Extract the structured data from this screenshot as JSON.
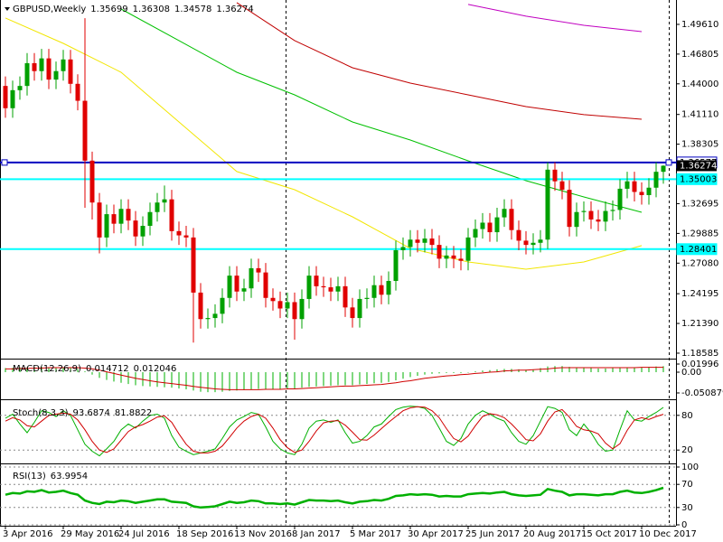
{
  "chart_data": [
    {
      "type": "candlestick",
      "title": "GBPUSD,Weekly",
      "categories": [
        "3 Apr 2016",
        null,
        null,
        null,
        null,
        null,
        null,
        null,
        "29 May 2016",
        null,
        null,
        null,
        null,
        null,
        null,
        null,
        "24 Jul 2016",
        null,
        null,
        null,
        null,
        null,
        null,
        null,
        "18 Sep 2016",
        null,
        null,
        null,
        null,
        null,
        null,
        null,
        "13 Nov 2016",
        null,
        null,
        null,
        null,
        null,
        null,
        null,
        "8 Jan 2017",
        null,
        null,
        null,
        null,
        null,
        null,
        null,
        "5 Mar 2017",
        null,
        null,
        null,
        null,
        null,
        null,
        null,
        "30 Apr 2017",
        null,
        null,
        null,
        null,
        null,
        null,
        null,
        "25 Jun 2017",
        null,
        null,
        null,
        null,
        null,
        null,
        null,
        "20 Aug 2017",
        null,
        null,
        null,
        null,
        null,
        null,
        null,
        "15 Oct 2017",
        null,
        null,
        null,
        null,
        null,
        null,
        null,
        "10 Dec 2017",
        null,
        null,
        null
      ],
      "open": [
        1.438,
        1.417,
        1.434,
        1.438,
        1.4595,
        1.452,
        1.464,
        1.444,
        1.452,
        1.463,
        1.44,
        1.424,
        1.3675,
        1.328,
        1.295,
        1.317,
        1.308,
        1.322,
        1.311,
        1.296,
        1.306,
        1.319,
        1.328,
        1.331,
        1.301,
        1.297,
        1.295,
        1.243,
        1.218,
        1.219,
        1.223,
        1.238,
        1.259,
        1.244,
        1.247,
        1.266,
        1.262,
        1.238,
        1.235,
        1.228,
        1.234,
        1.218,
        1.237,
        1.259,
        1.249,
        1.248,
        1.244,
        1.249,
        1.229,
        1.219,
        1.237,
        1.238,
        1.25,
        1.241,
        1.254,
        1.283,
        1.286,
        1.293,
        1.29,
        1.294,
        1.288,
        1.275,
        1.278,
        1.275,
        1.273,
        1.295,
        1.303,
        1.309,
        1.3,
        1.314,
        1.322,
        1.302,
        1.292,
        1.288,
        1.29,
        1.293,
        1.359,
        1.348,
        1.34,
        1.305,
        1.319,
        1.32,
        1.312,
        1.31,
        1.32,
        1.321,
        1.341,
        1.348,
        1.338,
        1.335,
        1.342,
        1.35699
      ],
      "high": [
        1.447,
        1.443,
        1.447,
        1.469,
        1.469,
        1.473,
        1.473,
        1.461,
        1.472,
        1.472,
        1.449,
        1.5019,
        1.376,
        1.337,
        1.326,
        1.326,
        1.331,
        1.331,
        1.32,
        1.315,
        1.328,
        1.337,
        1.344,
        1.34,
        1.31,
        1.306,
        1.304,
        1.252,
        1.228,
        1.232,
        1.247,
        1.268,
        1.268,
        1.256,
        1.275,
        1.275,
        1.271,
        1.247,
        1.244,
        1.243,
        1.243,
        1.246,
        1.268,
        1.268,
        1.258,
        1.257,
        1.258,
        1.258,
        1.238,
        1.246,
        1.247,
        1.259,
        1.259,
        1.263,
        1.292,
        1.295,
        1.302,
        1.302,
        1.303,
        1.303,
        1.297,
        1.287,
        1.287,
        1.284,
        1.304,
        1.312,
        1.318,
        1.318,
        1.323,
        1.331,
        1.331,
        1.311,
        1.301,
        1.299,
        1.302,
        1.366,
        1.366,
        1.357,
        1.349,
        1.328,
        1.329,
        1.329,
        1.321,
        1.329,
        1.33,
        1.35,
        1.357,
        1.357,
        1.347,
        1.351,
        1.366,
        1.36308
      ],
      "low": [
        1.408,
        1.408,
        1.425,
        1.429,
        1.443,
        1.443,
        1.435,
        1.435,
        1.443,
        1.431,
        1.415,
        1.323,
        1.312,
        1.28,
        1.286,
        1.299,
        1.299,
        1.302,
        1.287,
        1.287,
        1.297,
        1.31,
        1.319,
        1.292,
        1.288,
        1.286,
        1.1958,
        1.209,
        1.209,
        1.21,
        1.214,
        1.229,
        1.235,
        1.235,
        1.238,
        1.253,
        1.229,
        1.226,
        1.219,
        1.219,
        1.1986,
        1.209,
        1.228,
        1.24,
        1.239,
        1.235,
        1.235,
        1.22,
        1.21,
        1.21,
        1.228,
        1.229,
        1.232,
        1.232,
        1.245,
        1.274,
        1.277,
        1.281,
        1.281,
        1.279,
        1.266,
        1.266,
        1.266,
        1.264,
        1.264,
        1.286,
        1.294,
        1.291,
        1.291,
        1.305,
        1.293,
        1.283,
        1.279,
        1.279,
        1.281,
        1.284,
        1.339,
        1.331,
        1.296,
        1.296,
        1.31,
        1.303,
        1.301,
        1.301,
        1.311,
        1.312,
        1.332,
        1.329,
        1.326,
        1.326,
        1.333,
        1.34578
      ],
      "close": [
        1.417,
        1.434,
        1.438,
        1.4595,
        1.452,
        1.464,
        1.444,
        1.452,
        1.463,
        1.44,
        1.424,
        1.3675,
        1.328,
        1.295,
        1.317,
        1.308,
        1.322,
        1.311,
        1.296,
        1.306,
        1.319,
        1.328,
        1.331,
        1.301,
        1.297,
        1.295,
        1.243,
        1.218,
        1.219,
        1.223,
        1.238,
        1.259,
        1.244,
        1.247,
        1.266,
        1.262,
        1.238,
        1.235,
        1.228,
        1.234,
        1.218,
        1.237,
        1.259,
        1.249,
        1.248,
        1.244,
        1.249,
        1.229,
        1.219,
        1.237,
        1.238,
        1.25,
        1.241,
        1.254,
        1.283,
        1.286,
        1.293,
        1.29,
        1.294,
        1.288,
        1.275,
        1.278,
        1.275,
        1.273,
        1.295,
        1.303,
        1.309,
        1.3,
        1.314,
        1.322,
        1.302,
        1.292,
        1.288,
        1.29,
        1.293,
        1.359,
        1.348,
        1.34,
        1.305,
        1.319,
        1.32,
        1.312,
        1.31,
        1.32,
        1.321,
        1.341,
        1.348,
        1.338,
        1.335,
        1.342,
        1.35699,
        1.36274
      ],
      "up_color": "#00a000",
      "down_color": "#e00000",
      "overlays": [
        {
          "color": "#f2e600",
          "x": [
            "3 Apr 2016",
            "29 May 2016",
            "24 Jul 2016",
            "18 Sep 2016",
            "13 Nov 2016",
            "8 Jan 2017",
            "5 Mar 2017",
            "30 Apr 2017",
            "25 Jun 2017",
            "20 Aug 2017",
            "15 Oct 2017",
            "10 Dec 2017"
          ],
          "values": [
            1.5021,
            1.4782,
            1.4509,
            1.404,
            1.3572,
            1.3401,
            1.3145,
            1.2847,
            1.2719,
            1.2651,
            1.2719,
            1.2873
          ]
        },
        {
          "color": "#00c000",
          "x": [
            "3 Apr 2016",
            "29 May 2016",
            "24 Jul 2016",
            "18 Sep 2016",
            "13 Nov 2016",
            "8 Jan 2017",
            "5 Mar 2017",
            "30 Apr 2017",
            "25 Jun 2017",
            "20 Aug 2017",
            "15 Oct 2017",
            "10 Dec 2017"
          ],
          "values": [
            null,
            null,
            1.5106,
            1.4808,
            1.4509,
            1.4296,
            1.404,
            1.387,
            1.3674,
            1.3486,
            1.3333,
            1.3188
          ]
        },
        {
          "color": "#c00000",
          "x": [
            "3 Apr 2016",
            "29 May 2016",
            "24 Jul 2016",
            "18 Sep 2016",
            "13 Nov 2016",
            "8 Jan 2017",
            "5 Mar 2017",
            "30 Apr 2017",
            "25 Jun 2017",
            "20 Aug 2017",
            "15 Oct 2017",
            "10 Dec 2017"
          ],
          "values": [
            null,
            null,
            null,
            null,
            1.5166,
            1.4808,
            1.4552,
            1.4407,
            1.4296,
            1.4185,
            1.4109,
            1.4066
          ]
        },
        {
          "color": "#c000c0",
          "x": [
            "3 Apr 2016",
            "29 May 2016",
            "24 Jul 2016",
            "18 Sep 2016",
            "13 Nov 2016",
            "8 Jan 2017",
            "5 Mar 2017",
            "30 Apr 2017",
            "25 Jun 2017",
            "20 Aug 2017",
            "15 Oct 2017",
            "10 Dec 2017"
          ],
          "values": [
            null,
            null,
            null,
            null,
            null,
            null,
            null,
            null,
            1.5149,
            1.5038,
            1.4952,
            1.4893
          ]
        }
      ],
      "hlines": [
        {
          "value": 1.36577,
          "color": "#0000c0"
        },
        {
          "value": 1.35003,
          "color": "#00ffff"
        },
        {
          "value": 1.28401,
          "color": "#00ffff"
        }
      ],
      "ylim": [
        1.1807,
        1.5191
      ],
      "yticks": [
        {
          "value": 1.4961,
          "label": "1.49610"
        },
        1.46805,
        {
          "value": 1.44,
          "label": "1.44000"
        },
        {
          "value": 1.4111,
          "label": "1.41110"
        },
        1.38305,
        1.32695,
        1.29885,
        {
          "value": 1.2708,
          "label": "1.27080"
        },
        1.24195,
        {
          "value": 1.2139,
          "label": "1.21390"
        },
        1.18585
      ]
    },
    {
      "type": "bar",
      "title": "MACD(12,26,9)",
      "series": [
        {
          "color": "#00b000",
          "values": [
            0.01,
            0.011,
            0.012,
            0.012,
            0.013,
            0.013,
            0.012,
            0.012,
            0.012,
            0.01,
            0.008,
            0.002,
            -0.006,
            -0.014,
            -0.019,
            -0.023,
            -0.026,
            -0.029,
            -0.032,
            -0.034,
            -0.035,
            -0.036,
            -0.037,
            -0.038,
            -0.04,
            -0.042,
            -0.045,
            -0.048,
            -0.049,
            -0.049,
            -0.048,
            -0.046,
            -0.045,
            -0.044,
            -0.042,
            -0.041,
            -0.041,
            -0.041,
            -0.041,
            -0.04,
            -0.04,
            -0.038,
            -0.036,
            -0.035,
            -0.034,
            -0.033,
            -0.032,
            -0.032,
            -0.032,
            -0.03,
            -0.029,
            -0.027,
            -0.026,
            -0.024,
            -0.02,
            -0.016,
            -0.012,
            -0.009,
            -0.006,
            -0.004,
            -0.003,
            -0.002,
            -0.002,
            -0.002,
            0,
            0.002,
            0.004,
            0.005,
            0.007,
            0.008,
            0.008,
            0.007,
            0.006,
            0.006,
            0.01,
            0.014,
            0.015,
            0.015,
            0.013,
            0.012,
            0.011,
            0.01,
            0.009,
            0.009,
            0.01,
            0.011,
            0.012,
            0.012,
            0.012,
            0.013,
            0.014,
            0.014712
          ]
        },
        {
          "type": "line",
          "color": "#d00000",
          "values": [
            0.008,
            0.008,
            0.009,
            0.009,
            0.01,
            0.01,
            0.011,
            0.011,
            0.011,
            0.011,
            0.011,
            0.01,
            0.008,
            0.005,
            0.001,
            -0.003,
            -0.007,
            -0.011,
            -0.015,
            -0.018,
            -0.021,
            -0.024,
            -0.026,
            -0.028,
            -0.03,
            -0.032,
            -0.035,
            -0.037,
            -0.039,
            -0.041,
            -0.042,
            -0.043,
            -0.043,
            -0.043,
            -0.043,
            -0.043,
            -0.042,
            -0.042,
            -0.042,
            -0.041,
            -0.041,
            -0.04,
            -0.039,
            -0.038,
            -0.037,
            -0.036,
            -0.035,
            -0.034,
            -0.034,
            -0.033,
            -0.032,
            -0.031,
            -0.03,
            -0.028,
            -0.026,
            -0.023,
            -0.021,
            -0.018,
            -0.015,
            -0.013,
            -0.011,
            -0.009,
            -0.008,
            -0.006,
            -0.005,
            -0.003,
            -0.002,
            0,
            0.001,
            0.003,
            0.004,
            0.005,
            0.005,
            0.006,
            0.007,
            0.008,
            0.01,
            0.011,
            0.011,
            0.011,
            0.011,
            0.011,
            0.011,
            0.011,
            0.011,
            0.011,
            0.011,
            0.011,
            0.012,
            0.012,
            0.012,
            0.012046
          ]
        }
      ],
      "ylim": [
        -0.0642,
        0.031
      ],
      "yticks": [
        0.01996,
        {
          "value": 0,
          "label": "0.00"
        },
        -0.050879
      ]
    },
    {
      "type": "line",
      "title": "Stoch(8,3,3)",
      "series": [
        {
          "color": "#00b000",
          "values": [
            75,
            82,
            65,
            50,
            68,
            88,
            85,
            78,
            88,
            80,
            55,
            30,
            18,
            10,
            22,
            35,
            55,
            65,
            58,
            70,
            80,
            82,
            75,
            45,
            25,
            18,
            12,
            15,
            18,
            22,
            40,
            60,
            72,
            78,
            85,
            82,
            60,
            35,
            22,
            15,
            12,
            30,
            58,
            70,
            72,
            68,
            72,
            50,
            32,
            35,
            45,
            60,
            65,
            78,
            90,
            94,
            96,
            95,
            92,
            80,
            58,
            35,
            28,
            40,
            65,
            80,
            88,
            82,
            75,
            70,
            50,
            35,
            30,
            45,
            70,
            95,
            92,
            85,
            55,
            45,
            65,
            50,
            30,
            18,
            20,
            55,
            88,
            72,
            70,
            78,
            85,
            93.6874
          ]
        },
        {
          "color": "#d00000",
          "values": [
            70,
            76,
            72,
            62,
            60,
            70,
            80,
            82,
            84,
            82,
            72,
            55,
            35,
            20,
            16,
            22,
            37,
            52,
            60,
            64,
            70,
            77,
            79,
            68,
            48,
            30,
            18,
            15,
            15,
            18,
            27,
            42,
            58,
            70,
            78,
            82,
            75,
            58,
            38,
            24,
            16,
            20,
            35,
            53,
            67,
            70,
            71,
            63,
            51,
            38,
            37,
            46,
            57,
            68,
            78,
            88,
            93,
            95,
            94,
            88,
            76,
            57,
            40,
            34,
            44,
            62,
            78,
            83,
            81,
            76,
            65,
            52,
            38,
            36,
            48,
            70,
            86,
            90,
            77,
            61,
            55,
            53,
            48,
            32,
            22,
            31,
            54,
            72,
            76,
            73,
            78,
            81.8822
          ]
        }
      ],
      "ylim": [
        0,
        100
      ],
      "yticks": [
        20,
        80
      ],
      "grid": true
    },
    {
      "type": "line",
      "title": "RSI(13)",
      "series": [
        {
          "color": "#00b000",
          "values": [
            52,
            55,
            54,
            58,
            57,
            60,
            56,
            57,
            59,
            55,
            52,
            42,
            38,
            36,
            40,
            39,
            42,
            41,
            38,
            40,
            42,
            44,
            44,
            40,
            39,
            38,
            32,
            30,
            31,
            32,
            36,
            40,
            38,
            39,
            42,
            41,
            37,
            37,
            36,
            37,
            35,
            39,
            43,
            42,
            42,
            41,
            42,
            39,
            37,
            40,
            41,
            43,
            42,
            45,
            50,
            51,
            53,
            52,
            53,
            52,
            49,
            50,
            49,
            49,
            53,
            54,
            55,
            54,
            56,
            57,
            53,
            51,
            50,
            51,
            52,
            62,
            59,
            57,
            51,
            53,
            53,
            52,
            51,
            53,
            53,
            57,
            59,
            56,
            55,
            57,
            60,
            63.9954
          ]
        }
      ],
      "ylim": [
        0,
        100
      ],
      "yticks": [
        0,
        30,
        70,
        100
      ],
      "grid": true
    }
  ]
}
